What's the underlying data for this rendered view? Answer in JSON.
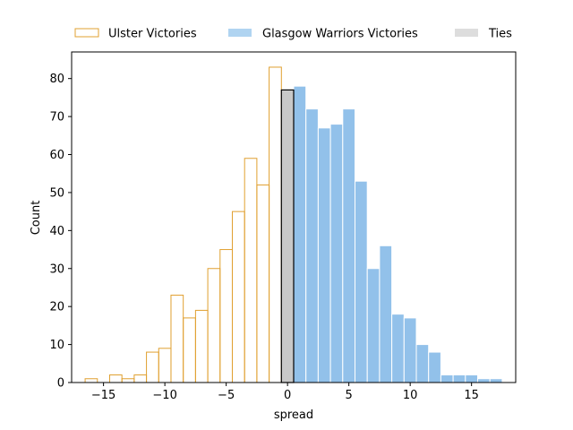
{
  "chart_data": {
    "type": "bar",
    "title": "",
    "xlabel": "spread",
    "ylabel": "Count",
    "xlim": [
      -17.6,
      18.6
    ],
    "ylim": [
      0,
      87
    ],
    "xticks": [
      -15,
      -10,
      -5,
      0,
      5,
      10,
      15
    ],
    "yticks": [
      0,
      10,
      20,
      30,
      40,
      50,
      60,
      70,
      80
    ],
    "bin_width": 1,
    "legend_position": "top",
    "grid": false,
    "series": [
      {
        "name": "Ulster Victories",
        "style": "outline",
        "color": "#e0a030",
        "x": [
          -16,
          -15,
          -14,
          -13,
          -12,
          -11,
          -10,
          -9,
          -8,
          -7,
          -6,
          -5,
          -4,
          -3,
          -2,
          -1
        ],
        "values": [
          1,
          0,
          2,
          1,
          2,
          8,
          9,
          23,
          17,
          19,
          30,
          35,
          45,
          59,
          52,
          83
        ]
      },
      {
        "name": "Glasgow Warriors Victories",
        "style": "filled",
        "color": "#92c1ea",
        "x": [
          1,
          2,
          3,
          4,
          5,
          6,
          7,
          8,
          9,
          10,
          11,
          12,
          13,
          14,
          15,
          16,
          17
        ],
        "values": [
          78,
          72,
          67,
          68,
          72,
          53,
          30,
          36,
          18,
          17,
          10,
          8,
          2,
          2,
          2,
          1,
          1
        ]
      },
      {
        "name": "Ties",
        "style": "filled-outlined",
        "color": "#c8c8c8",
        "x": [
          0
        ],
        "values": [
          77
        ]
      }
    ]
  }
}
